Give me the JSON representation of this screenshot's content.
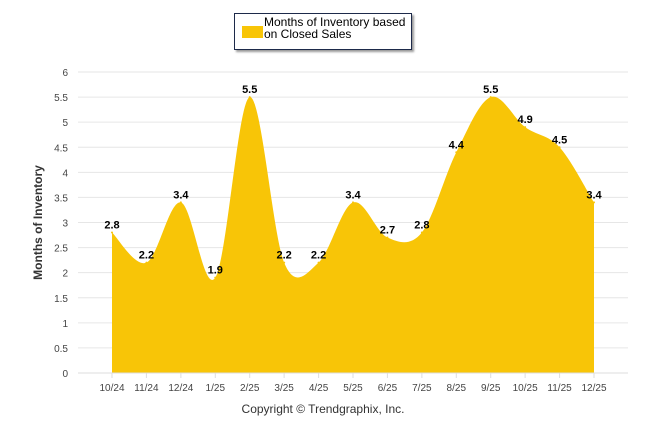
{
  "chart_data": {
    "type": "area",
    "title": "",
    "xlabel": "",
    "ylabel": "Months of Inventory",
    "ylim": [
      0,
      6
    ],
    "yticks": [
      "0",
      "0.5",
      "1",
      "1.5",
      "2",
      "2.5",
      "3",
      "3.5",
      "4",
      "4.5",
      "5",
      "5.5",
      "6"
    ],
    "categories": [
      "10/24",
      "11/24",
      "12/24",
      "1/25",
      "2/25",
      "3/25",
      "4/25",
      "5/25",
      "6/25",
      "7/25",
      "8/25",
      "9/25",
      "10/25",
      "11/25",
      "12/25"
    ],
    "series": [
      {
        "name": "Months of Inventory based on Closed Sales",
        "color": "#f8c507",
        "values": [
          2.8,
          2.2,
          3.4,
          1.9,
          5.5,
          2.2,
          2.2,
          3.4,
          2.7,
          2.8,
          4.4,
          5.5,
          4.9,
          4.5,
          3.4
        ]
      }
    ],
    "legend": "top-center",
    "grid": true
  },
  "legend_label": "Months of Inventory based on Closed Sales",
  "copyright": "Copyright © Trendgraphix, Inc."
}
